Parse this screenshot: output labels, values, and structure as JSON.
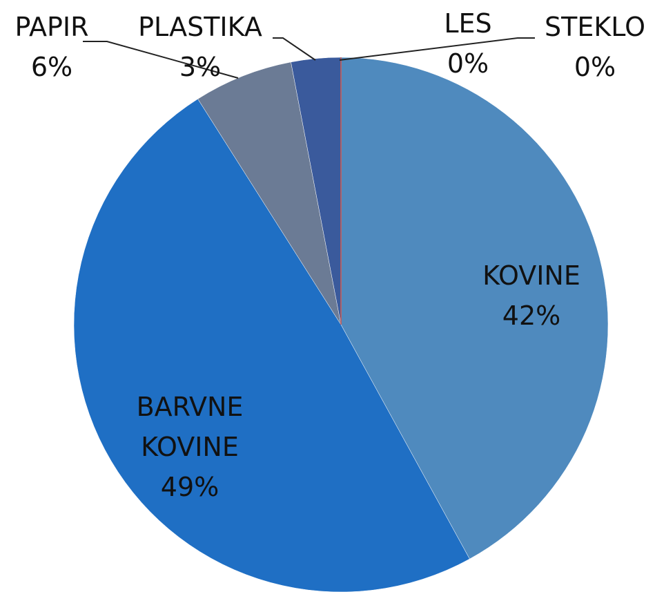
{
  "chart_data": {
    "type": "pie",
    "categories": [
      "KOVINE",
      "BARVNE KOVINE",
      "PAPIR",
      "PLASTIKA",
      "LES",
      "STEKLO"
    ],
    "values": [
      42,
      49,
      6,
      3,
      0,
      0
    ],
    "value_labels": [
      "42%",
      "49%",
      "6%",
      "3%",
      "0%",
      "0%"
    ],
    "colors": [
      "#4f8abe",
      "#1f6fc4",
      "#6b7b95",
      "#3a5a9c",
      "#b05050",
      "#c06060"
    ]
  }
}
